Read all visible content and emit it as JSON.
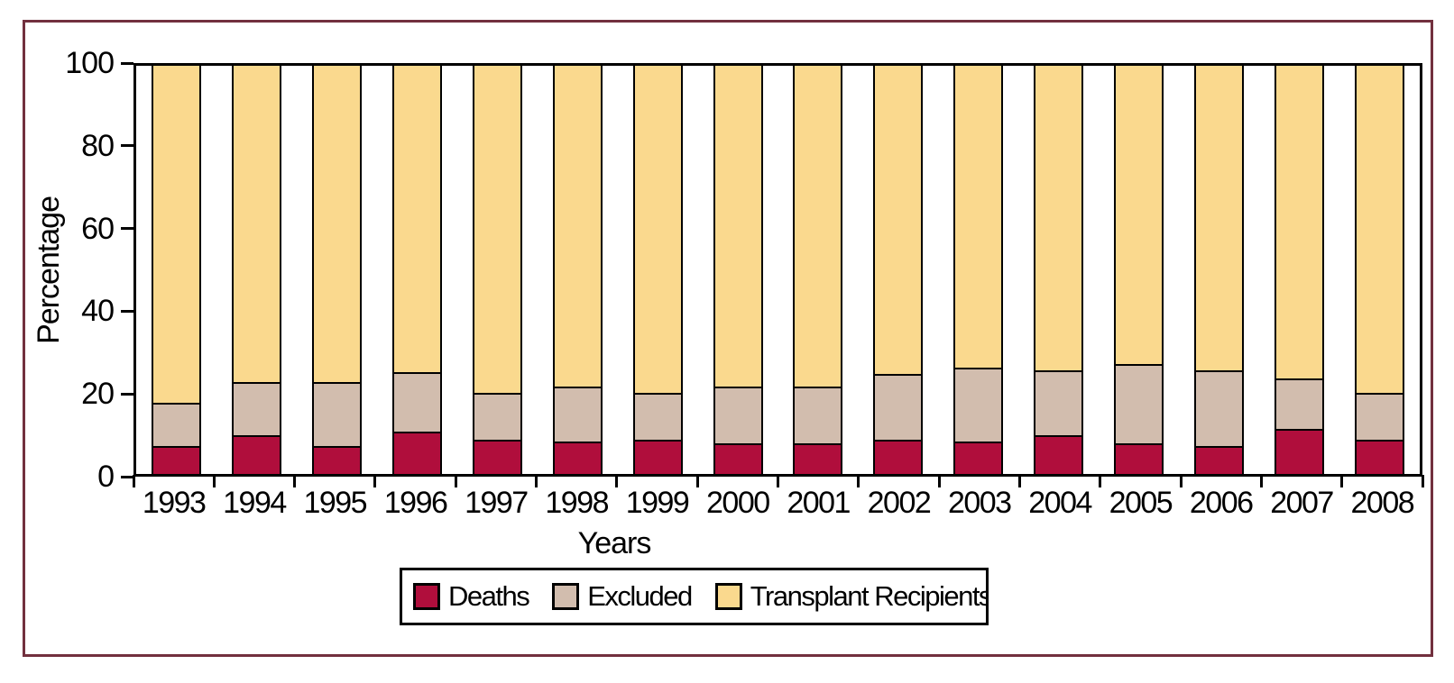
{
  "figure": {
    "border_color": "#72303E",
    "background_color": "#FFFFFF",
    "axis_color": "#000000"
  },
  "chart_data": {
    "type": "bar",
    "stacked": true,
    "title": "",
    "xlabel": "Years",
    "ylabel": "Percentage",
    "ylim": [
      0,
      100
    ],
    "yticks": [
      0,
      20,
      40,
      60,
      80,
      100
    ],
    "grid": false,
    "legend_position": "bottom",
    "categories": [
      "1993",
      "1994",
      "1995",
      "1996",
      "1997",
      "1998",
      "1999",
      "2000",
      "2001",
      "2002",
      "2003",
      "2004",
      "2005",
      "2006",
      "2007",
      "2008"
    ],
    "series": [
      {
        "name": "Deaths",
        "color": "#B00E3C",
        "values": [
          6.5,
          9,
          6.5,
          10,
          8,
          7.5,
          8,
          7,
          7,
          8,
          7.5,
          9,
          7,
          6.5,
          10.5,
          8
        ]
      },
      {
        "name": "Excluded",
        "color": "#D2BDAE",
        "values": [
          10.5,
          13,
          15.5,
          14.5,
          11.5,
          13.5,
          11.5,
          14,
          14,
          16,
          18,
          16,
          19.5,
          18.5,
          12.5,
          11.5
        ]
      },
      {
        "name": "Transplant Recipients",
        "color": "#FAD98E",
        "values": [
          83,
          78,
          78,
          75.5,
          80.5,
          79,
          80.5,
          79,
          79,
          76,
          74.5,
          75,
          73.5,
          75,
          77,
          80.5
        ]
      }
    ]
  }
}
